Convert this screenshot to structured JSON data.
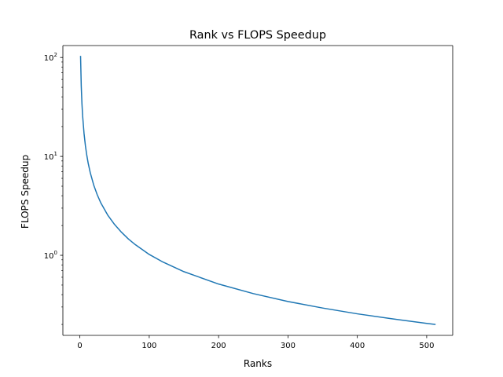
{
  "chart_data": {
    "type": "line",
    "title": "Rank vs FLOPS Speedup",
    "xlabel": "Ranks",
    "ylabel": "FLOPS Speedup",
    "x_scale": "linear",
    "y_scale": "log",
    "xlim": [
      -24.5,
      537.5
    ],
    "ylim": [
      0.155,
      132
    ],
    "x_ticks": [
      0,
      100,
      200,
      300,
      400,
      500
    ],
    "x_tick_labels": [
      "0",
      "100",
      "200",
      "300",
      "400",
      "500"
    ],
    "y_ticks": [
      1,
      10,
      100
    ],
    "y_tick_labels": [
      {
        "base": "10",
        "exp": "0"
      },
      {
        "base": "10",
        "exp": "1"
      },
      {
        "base": "10",
        "exp": "2"
      }
    ],
    "grid": false,
    "legend": "none",
    "series": [
      {
        "color": "#1f77b4",
        "x": [
          1,
          2,
          3,
          4,
          6,
          8,
          10,
          12,
          15,
          20,
          25,
          30,
          40,
          50,
          60,
          70,
          80,
          100,
          120,
          150,
          200,
          250,
          300,
          350,
          400,
          450,
          500,
          512
        ],
        "y": [
          102.4,
          51.2,
          34.13,
          25.6,
          17.07,
          12.8,
          10.24,
          8.53,
          6.83,
          5.12,
          4.1,
          3.41,
          2.56,
          2.05,
          1.71,
          1.46,
          1.28,
          1.02,
          0.853,
          0.683,
          0.512,
          0.41,
          0.341,
          0.293,
          0.256,
          0.228,
          0.205,
          0.2
        ]
      }
    ]
  }
}
